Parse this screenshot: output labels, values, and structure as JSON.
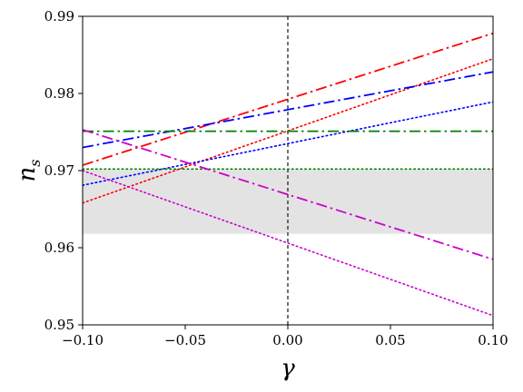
{
  "chart_data": {
    "type": "line",
    "xlabel": "γ",
    "ylabel": {
      "base": "n",
      "sub": "s"
    },
    "xlim": [
      -0.1,
      0.1
    ],
    "ylim": [
      0.95,
      0.99
    ],
    "xticks": [
      -0.1,
      -0.05,
      0.0,
      0.05,
      0.1
    ],
    "xtick_labels": [
      "−0.10",
      "−0.05",
      "0.00",
      "0.05",
      "0.10"
    ],
    "yticks": [
      0.95,
      0.96,
      0.97,
      0.98,
      0.99
    ],
    "ytick_labels": [
      "0.95",
      "0.96",
      "0.97",
      "0.98",
      "0.99"
    ],
    "grid": false,
    "legend": "none",
    "band": {
      "y0": 0.9618,
      "y1": 0.9701,
      "color": "#e3e3e3"
    },
    "vline": {
      "x": 0.0,
      "color": "#000000",
      "style": "dashed"
    },
    "series": [
      {
        "color": "#ff0000",
        "style": "dashdot",
        "x": [
          -0.1,
          0.1
        ],
        "values": [
          0.9707,
          0.9878
        ]
      },
      {
        "color": "#ff0000",
        "style": "dotted",
        "x": [
          -0.1,
          0.1
        ],
        "values": [
          0.9658,
          0.9845
        ]
      },
      {
        "color": "#0000ff",
        "style": "dashdot",
        "x": [
          -0.1,
          0.1
        ],
        "values": [
          0.973,
          0.9828
        ]
      },
      {
        "color": "#0000ff",
        "style": "dotted",
        "x": [
          -0.1,
          0.1
        ],
        "values": [
          0.9681,
          0.9789
        ]
      },
      {
        "color": "#008000",
        "style": "dashdot",
        "x": [
          -0.1,
          0.1
        ],
        "values": [
          0.9751,
          0.9751
        ]
      },
      {
        "color": "#008000",
        "style": "dotted",
        "x": [
          -0.1,
          0.1
        ],
        "values": [
          0.9702,
          0.9702
        ]
      },
      {
        "color": "#cc00cc",
        "style": "dashdot",
        "x": [
          -0.1,
          0.1
        ],
        "values": [
          0.9753,
          0.9585
        ]
      },
      {
        "color": "#cc00cc",
        "style": "dotted",
        "x": [
          -0.1,
          0.1
        ],
        "values": [
          0.97,
          0.9512
        ]
      }
    ]
  }
}
